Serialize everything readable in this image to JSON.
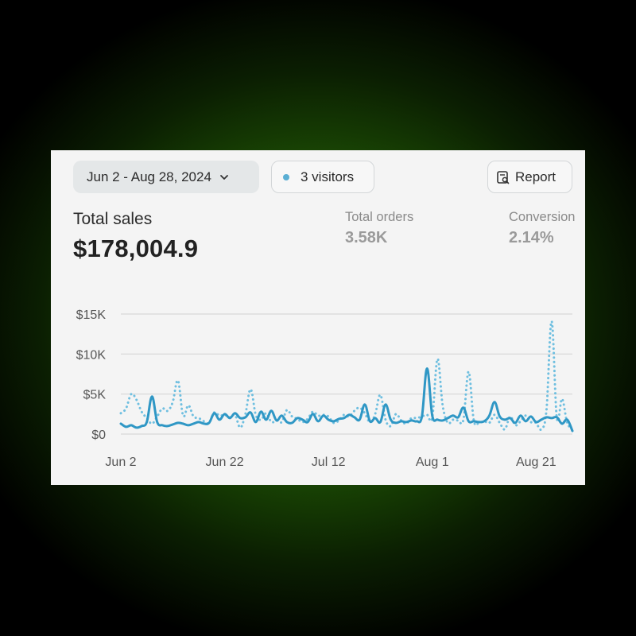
{
  "toolbar": {
    "date_range_label": "Jun 2 - Aug 28, 2024",
    "visitors_label": "3 visitors",
    "report_label": "Report"
  },
  "summary": {
    "total_sales_label": "Total sales",
    "total_sales_value": "$178,004.9",
    "metrics": [
      {
        "label": "Total orders",
        "value": "3.58K"
      },
      {
        "label": "Conversion",
        "value": "2.14%"
      }
    ]
  },
  "colors": {
    "primary_series": "#2f97c5",
    "comparison_series": "#6fbfe0",
    "visitor_dot": "#5aaed3",
    "grid": "#d6d6d6"
  },
  "icons": {
    "date_dropdown": "chevron-down-icon",
    "visitors": "dot-icon",
    "report": "report-search-icon"
  },
  "chart_data": {
    "type": "line",
    "ylim": [
      0,
      15000
    ],
    "y_ticks": [
      {
        "value": 0,
        "label": "$0"
      },
      {
        "value": 5000,
        "label": "$5K"
      },
      {
        "value": 10000,
        "label": "$10K"
      },
      {
        "value": 15000,
        "label": "$15K"
      }
    ],
    "x_ticks": [
      "Jun 2",
      "Jun 22",
      "Jul 12",
      "Aug 1",
      "Aug 21"
    ],
    "grid": true,
    "x": [
      "2024-06-02",
      "2024-06-03",
      "2024-06-04",
      "2024-06-05",
      "2024-06-06",
      "2024-06-07",
      "2024-06-08",
      "2024-06-09",
      "2024-06-10",
      "2024-06-11",
      "2024-06-12",
      "2024-06-13",
      "2024-06-14",
      "2024-06-15",
      "2024-06-16",
      "2024-06-17",
      "2024-06-18",
      "2024-06-19",
      "2024-06-20",
      "2024-06-21",
      "2024-06-22",
      "2024-06-23",
      "2024-06-24",
      "2024-06-25",
      "2024-06-26",
      "2024-06-27",
      "2024-06-28",
      "2024-06-29",
      "2024-06-30",
      "2024-07-01",
      "2024-07-02",
      "2024-07-03",
      "2024-07-04",
      "2024-07-05",
      "2024-07-06",
      "2024-07-07",
      "2024-07-08",
      "2024-07-09",
      "2024-07-10",
      "2024-07-11",
      "2024-07-12",
      "2024-07-13",
      "2024-07-14",
      "2024-07-15",
      "2024-07-16",
      "2024-07-17",
      "2024-07-18",
      "2024-07-19",
      "2024-07-20",
      "2024-07-21",
      "2024-07-22",
      "2024-07-23",
      "2024-07-24",
      "2024-07-25",
      "2024-07-26",
      "2024-07-27",
      "2024-07-28",
      "2024-07-29",
      "2024-07-30",
      "2024-07-31",
      "2024-08-01",
      "2024-08-02",
      "2024-08-03",
      "2024-08-04",
      "2024-08-05",
      "2024-08-06",
      "2024-08-07",
      "2024-08-08",
      "2024-08-09",
      "2024-08-10",
      "2024-08-11",
      "2024-08-12",
      "2024-08-13",
      "2024-08-14",
      "2024-08-15",
      "2024-08-16",
      "2024-08-17",
      "2024-08-18",
      "2024-08-19",
      "2024-08-20",
      "2024-08-21",
      "2024-08-22",
      "2024-08-23",
      "2024-08-24",
      "2024-08-25",
      "2024-08-26",
      "2024-08-27",
      "2024-08-28"
    ],
    "series": [
      {
        "style": "solid",
        "values": [
          1300,
          900,
          1100,
          800,
          1000,
          1500,
          4700,
          1500,
          1100,
          1000,
          1200,
          1400,
          1300,
          1100,
          1300,
          1500,
          1300,
          1400,
          2600,
          1800,
          2500,
          2000,
          2600,
          2000,
          2100,
          2700,
          1500,
          2800,
          1800,
          2900,
          1700,
          2300,
          1500,
          1400,
          2000,
          1800,
          1500,
          2500,
          1600,
          2300,
          1800,
          1600,
          1900,
          2000,
          2400,
          2100,
          1800,
          3700,
          1600,
          2000,
          1500,
          3700,
          1800,
          1400,
          1600,
          1500,
          1700,
          1600,
          2200,
          8200,
          2300,
          1800,
          1700,
          2000,
          2300,
          2100,
          3300,
          1600,
          1600,
          1500,
          1600,
          2300,
          4000,
          2200,
          1800,
          2000,
          1400,
          2300,
          1600,
          2200,
          1500,
          1800,
          2100,
          2000,
          2100,
          1300,
          1800,
          400
        ]
      },
      {
        "style": "dotted",
        "values": [
          2600,
          3200,
          5000,
          4300,
          2800,
          2000,
          1300,
          2200,
          3200,
          2900,
          4000,
          6700,
          2300,
          3600,
          2200,
          2000,
          1600,
          1400,
          2700,
          2300,
          2400,
          2100,
          2400,
          800,
          2500,
          5600,
          2400,
          1800,
          2600,
          1500,
          1700,
          1500,
          3000,
          2200,
          1900,
          1500,
          1900,
          2800,
          2300,
          2400,
          2200,
          1400,
          1700,
          2400,
          2200,
          2900,
          3300,
          2600,
          1500,
          2500,
          4900,
          1800,
          1000,
          2500,
          1700,
          1300,
          2000,
          2000,
          2200,
          2400,
          2100,
          9400,
          3600,
          1400,
          1800,
          1700,
          1800,
          7800,
          1700,
          1400,
          1600,
          1400,
          2400,
          1400,
          600,
          2200,
          1100,
          1600,
          2300,
          1500,
          1400,
          600,
          3000,
          14100,
          2000,
          4400,
          1400,
          700
        ]
      }
    ]
  }
}
